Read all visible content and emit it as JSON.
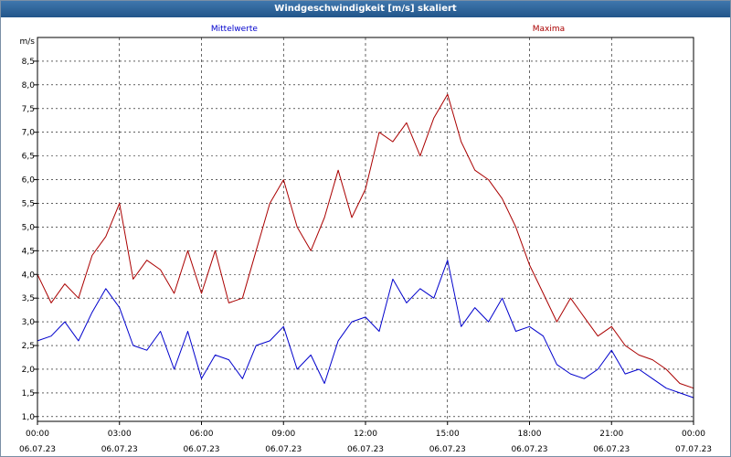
{
  "window": {
    "title": "Windgeschwindigkeit [m/s] skaliert"
  },
  "chart_data": {
    "type": "line",
    "title": "Windgeschwindigkeit [m/s] skaliert",
    "ylabel": "m/s",
    "ylim": [
      0.9,
      9.0
    ],
    "yticks": [
      1.0,
      1.5,
      2.0,
      2.5,
      3.0,
      3.5,
      4.0,
      4.5,
      5.0,
      5.5,
      6.0,
      6.5,
      7.0,
      7.5,
      8.0,
      8.5
    ],
    "ytick_labels": [
      "1,0",
      "1,5",
      "2,0",
      "2,5",
      "3,0",
      "3,5",
      "4,0",
      "4,5",
      "5,0",
      "5,5",
      "6,0",
      "6,5",
      "7,0",
      "7,5",
      "8,0",
      "8,5"
    ],
    "xlim_hours": [
      0,
      24
    ],
    "xticks": [
      {
        "hour": 0,
        "time": "00:00",
        "date": "06.07.23"
      },
      {
        "hour": 3,
        "time": "03:00",
        "date": "06.07.23"
      },
      {
        "hour": 6,
        "time": "06:00",
        "date": "06.07.23"
      },
      {
        "hour": 9,
        "time": "09:00",
        "date": "06.07.23"
      },
      {
        "hour": 12,
        "time": "12:00",
        "date": "06.07.23"
      },
      {
        "hour": 15,
        "time": "15:00",
        "date": "06.07.23"
      },
      {
        "hour": 18,
        "time": "18:00",
        "date": "06.07.23"
      },
      {
        "hour": 21,
        "time": "21:00",
        "date": "06.07.23"
      },
      {
        "hour": 24,
        "time": "00:00",
        "date": "07.07.23"
      }
    ],
    "grid": true,
    "x": [
      0,
      0.5,
      1,
      1.5,
      2,
      2.5,
      3,
      3.5,
      4,
      4.5,
      5,
      5.5,
      6,
      6.5,
      7,
      7.5,
      8,
      8.5,
      9,
      9.5,
      10,
      10.5,
      11,
      11.5,
      12,
      12.5,
      13,
      13.5,
      14,
      14.5,
      15,
      15.5,
      16,
      16.5,
      17,
      17.5,
      18,
      18.5,
      19,
      19.5,
      20,
      20.5,
      21,
      21.5,
      22,
      22.5,
      23,
      23.5,
      24
    ],
    "series": [
      {
        "name": "Mittelwerte",
        "color": "#0000cc",
        "values": [
          2.6,
          2.7,
          3.0,
          2.6,
          3.2,
          3.7,
          3.3,
          2.5,
          2.4,
          2.8,
          2.0,
          2.8,
          1.8,
          2.3,
          2.2,
          1.8,
          2.5,
          2.6,
          2.9,
          2.0,
          2.3,
          1.7,
          2.6,
          3.0,
          3.1,
          2.8,
          3.9,
          3.4,
          3.7,
          3.5,
          4.3,
          2.9,
          3.3,
          3.0,
          3.5,
          2.8,
          2.9,
          2.7,
          2.1,
          1.9,
          1.8,
          2.0,
          2.4,
          1.9,
          2.0,
          1.8,
          1.6,
          1.5,
          1.4
        ]
      },
      {
        "name": "Maxima",
        "color": "#aa0000",
        "values": [
          4.0,
          3.4,
          3.8,
          3.5,
          4.4,
          4.8,
          5.5,
          3.9,
          4.3,
          4.1,
          3.6,
          4.5,
          3.6,
          4.5,
          3.4,
          3.5,
          4.5,
          5.5,
          6.0,
          5.0,
          4.5,
          5.2,
          6.2,
          5.2,
          5.8,
          7.0,
          6.8,
          7.2,
          6.5,
          7.3,
          7.8,
          6.8,
          6.2,
          6.0,
          5.6,
          5.0,
          4.2,
          3.6,
          3.0,
          3.5,
          3.1,
          2.7,
          2.9,
          2.5,
          2.3,
          2.2,
          2.0,
          1.7,
          1.6
        ]
      }
    ]
  }
}
